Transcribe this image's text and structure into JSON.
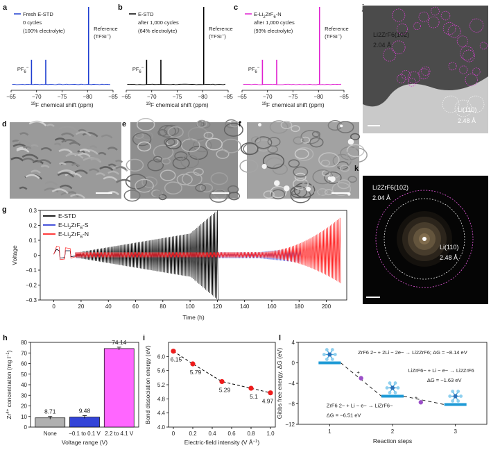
{
  "panel_letters": {
    "a": "a",
    "b": "b",
    "c": "c",
    "d": "d",
    "e": "e",
    "f": "f",
    "g": "g",
    "h": "h",
    "i": "i",
    "j": "j",
    "k": "k",
    "l": "l"
  },
  "nmr": {
    "xlabel": "19F chemical shift (ppm)",
    "xlabel_sup": "19",
    "xlabel_rest": "F chemical shift (ppm)",
    "ticks": [
      "−65",
      "−70",
      "−75",
      "−80",
      "−85"
    ],
    "pf6": "PF6−",
    "reference_line1": "Reference",
    "reference_line2": "(TFSI−)",
    "panels": [
      {
        "legend": "Fresh E-STD",
        "line2": "0 cycles",
        "line3": "(100% electrolyte)",
        "color": "#1f3fd1"
      },
      {
        "legend": "E-STD",
        "line2": "after 1,000 cycles",
        "line3": "(64% electrolyte)",
        "color": "#000000"
      },
      {
        "legend": "E-Li2ZrF6-N",
        "line2": "after 1,000 cycles",
        "line3": "(93% electrolyte)",
        "color": "#e020d0"
      }
    ]
  },
  "micro": {
    "j_label1": "Li2ZrF6(102)",
    "j_value1": "2.04 Å",
    "j_label2": "Li(110)",
    "j_value2": "2.48 Å",
    "k_label1": "Li2ZrF6(102)",
    "k_value1": "2.04 Å",
    "k_label2": "Li(110)",
    "k_value2": "2.48 Å"
  },
  "chart_data": [
    {
      "id": "g",
      "type": "line",
      "xlabel": "Time (h)",
      "ylabel": "Voltage",
      "xlim": [
        -10,
        215
      ],
      "ylim": [
        -0.3,
        0.3
      ],
      "xticks": [
        "0",
        "20",
        "40",
        "60",
        "80",
        "100",
        "120",
        "140",
        "160",
        "180",
        "200"
      ],
      "yticks": [
        "0.3",
        "0.2",
        "0.1",
        "0",
        "−0.1",
        "−0.2",
        "−0.3"
      ],
      "legend_position": "top-left",
      "series": [
        {
          "name": "E-STD",
          "color": "#000000",
          "end_h": 120,
          "amplitude_end": 0.3
        },
        {
          "name": "E-Li2ZrF6-S",
          "color": "#2d3bd6",
          "end_h": 181,
          "amplitude_end": 0.05
        },
        {
          "name": "E-Li2ZrF6-N",
          "color": "#ff2020",
          "end_h": 210,
          "amplitude_end": 0.25
        }
      ]
    },
    {
      "id": "h",
      "type": "bar",
      "xlabel": "Voltage range (V)",
      "ylabel": "Zr4+ concentration (mg l−1)",
      "ylim": [
        0,
        80
      ],
      "yticks": [
        "0",
        "10",
        "20",
        "30",
        "40",
        "50",
        "60",
        "70",
        "80"
      ],
      "categories": [
        "None",
        "−0.1 to 0.1 V",
        "2.2 to 4.1 V"
      ],
      "values": [
        8.71,
        9.48,
        74.14
      ],
      "value_labels": [
        "8.71",
        "9.48",
        "74.14"
      ],
      "colors": [
        "#b0b0b0",
        "#3344d8",
        "#ff66ff"
      ]
    },
    {
      "id": "i",
      "type": "scatter",
      "xlabel": "Electric-field intensity (V Å−1)",
      "ylabel": "Bond dissociation energy (eV)",
      "xlim": [
        -0.05,
        1.05
      ],
      "ylim": [
        4.0,
        6.4
      ],
      "xticks": [
        "0",
        "0.2",
        "0.4",
        "0.6",
        "0.8",
        "1.0"
      ],
      "yticks": [
        "4.0",
        "4.4",
        "4.8",
        "5.2",
        "5.6",
        "6.0"
      ],
      "x": [
        0,
        0.2,
        0.5,
        0.8,
        1.0
      ],
      "y": [
        6.15,
        5.79,
        5.29,
        5.1,
        4.97
      ],
      "value_labels": [
        "6.15",
        "5.79",
        "5.29",
        "5.1",
        "4.97"
      ],
      "color": "#ee1c1c"
    },
    {
      "id": "l",
      "type": "line",
      "xlabel": "Reaction steps",
      "ylabel": "Gibbs free energy, ΔG (eV)",
      "xlim": [
        0.5,
        3.5
      ],
      "ylim": [
        -12,
        4
      ],
      "xticks": [
        "1",
        "2",
        "3"
      ],
      "yticks": [
        "4",
        "0",
        "−4",
        "−8",
        "−12"
      ],
      "x": [
        1,
        2,
        3
      ],
      "y": [
        0,
        -6.51,
        -8.14
      ],
      "annotations": {
        "overall": "ZrF6 2− + 2Li − 2e− → Li2ZrF6; ΔG = −8.14 eV",
        "step1": "ZrF6 2− + Li − e− → LiZrF6−",
        "step1_dg": "ΔG = −6.51 eV",
        "step2": "LiZrF6− + Li − e− → Li2ZrF6",
        "step2_dg": "ΔG = −1.63 eV"
      }
    }
  ]
}
